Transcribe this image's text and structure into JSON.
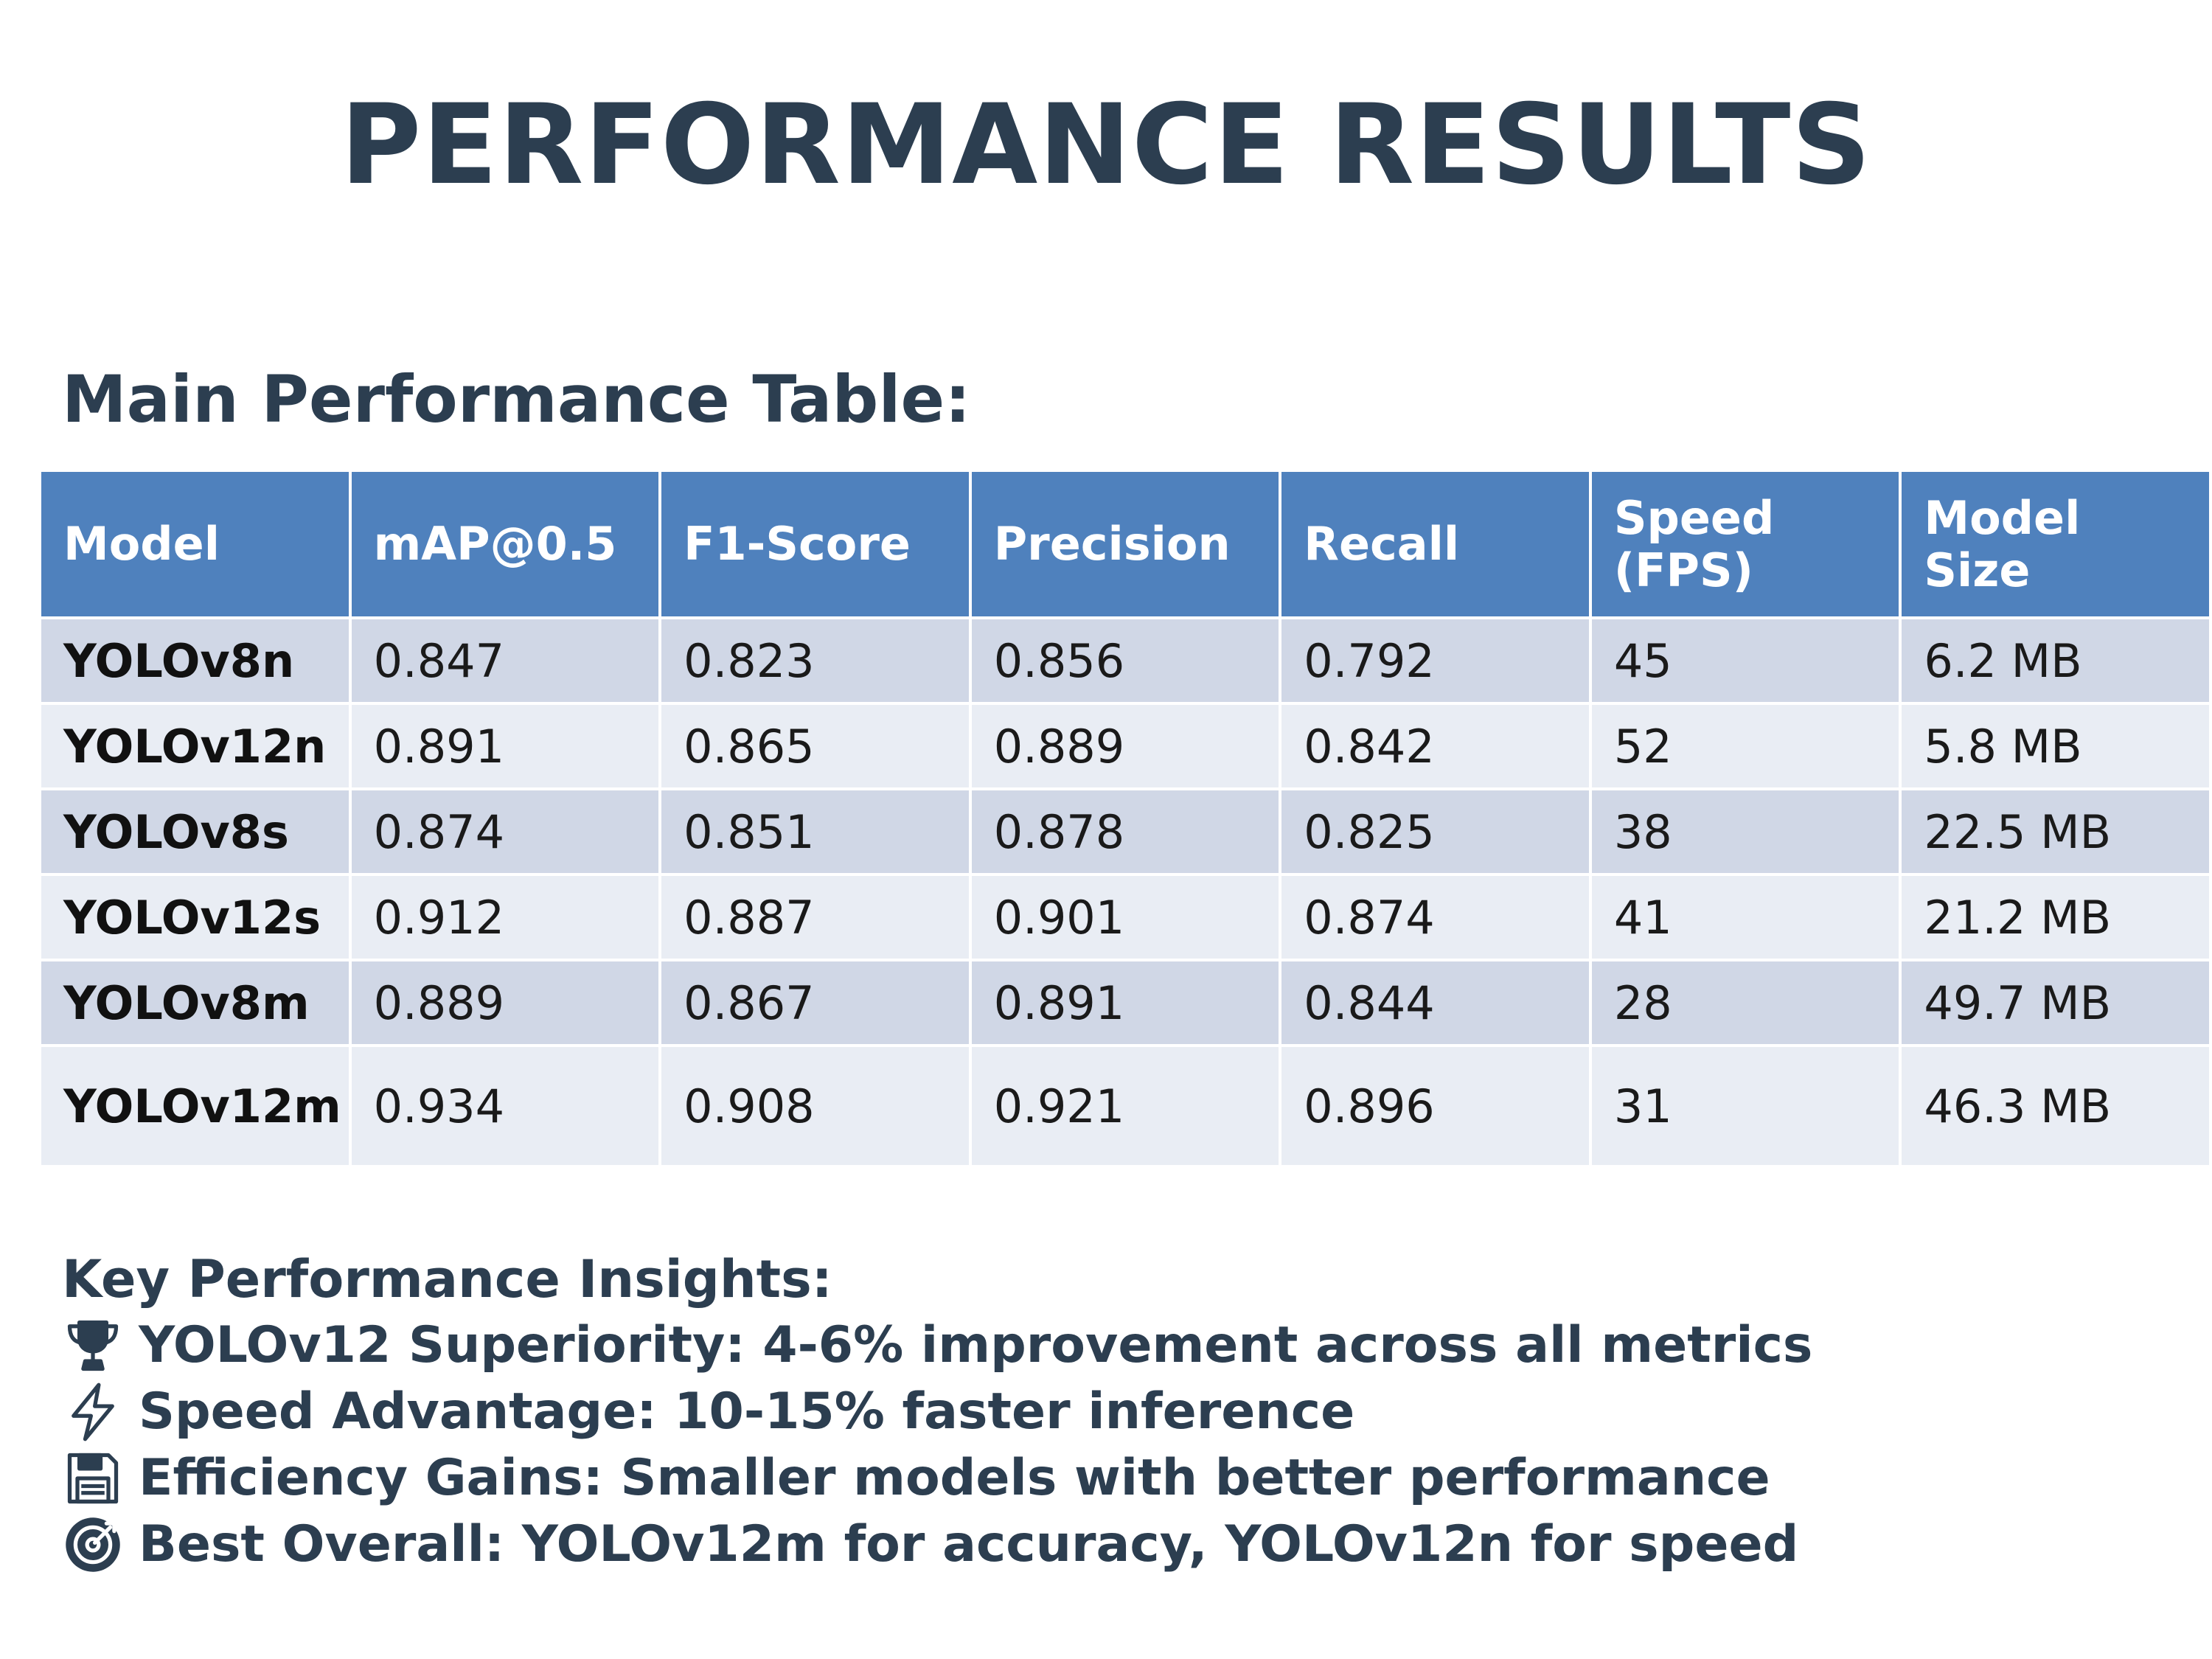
{
  "title": "PERFORMANCE RESULTS",
  "subtitle": "Main Performance Table:",
  "table": {
    "headers": [
      "Model",
      "mAP@0.5",
      "F1-Score",
      "Precision",
      "Recall",
      "Speed (FPS)",
      "Model Size"
    ],
    "rows": [
      [
        "YOLOv8n",
        "0.847",
        "0.823",
        "0.856",
        "0.792",
        "45",
        "6.2 MB"
      ],
      [
        "YOLOv12n",
        "0.891",
        "0.865",
        "0.889",
        "0.842",
        "52",
        "5.8 MB"
      ],
      [
        "YOLOv8s",
        "0.874",
        "0.851",
        "0.878",
        "0.825",
        "38",
        "22.5 MB"
      ],
      [
        "YOLOv12s",
        "0.912",
        "0.887",
        "0.901",
        "0.874",
        "41",
        "21.2 MB"
      ],
      [
        "YOLOv8m",
        "0.889",
        "0.867",
        "0.891",
        "0.844",
        "28",
        "49.7 MB"
      ],
      [
        "YOLOv12m",
        "0.934",
        "0.908",
        "0.921",
        "0.896",
        "31",
        "46.3 MB"
      ]
    ]
  },
  "insights": {
    "heading": "Key Performance Insights:",
    "items": [
      {
        "icon": "trophy-icon",
        "text": "YOLOv12 Superiority: 4-6% improvement across all metrics"
      },
      {
        "icon": "lightning-icon",
        "text": "Speed Advantage: 10-15% faster inference"
      },
      {
        "icon": "floppy-disk-icon",
        "text": "Efficiency Gains: Smaller models with better performance"
      },
      {
        "icon": "target-icon",
        "text": "Best Overall: YOLOv12m for accuracy, YOLOv12n for speed"
      }
    ]
  },
  "colors": {
    "title": "#2c3e50",
    "header_bg": "#4f81bd",
    "row_odd_bg": "#d0d7e6",
    "row_even_bg": "#e9edf4"
  }
}
